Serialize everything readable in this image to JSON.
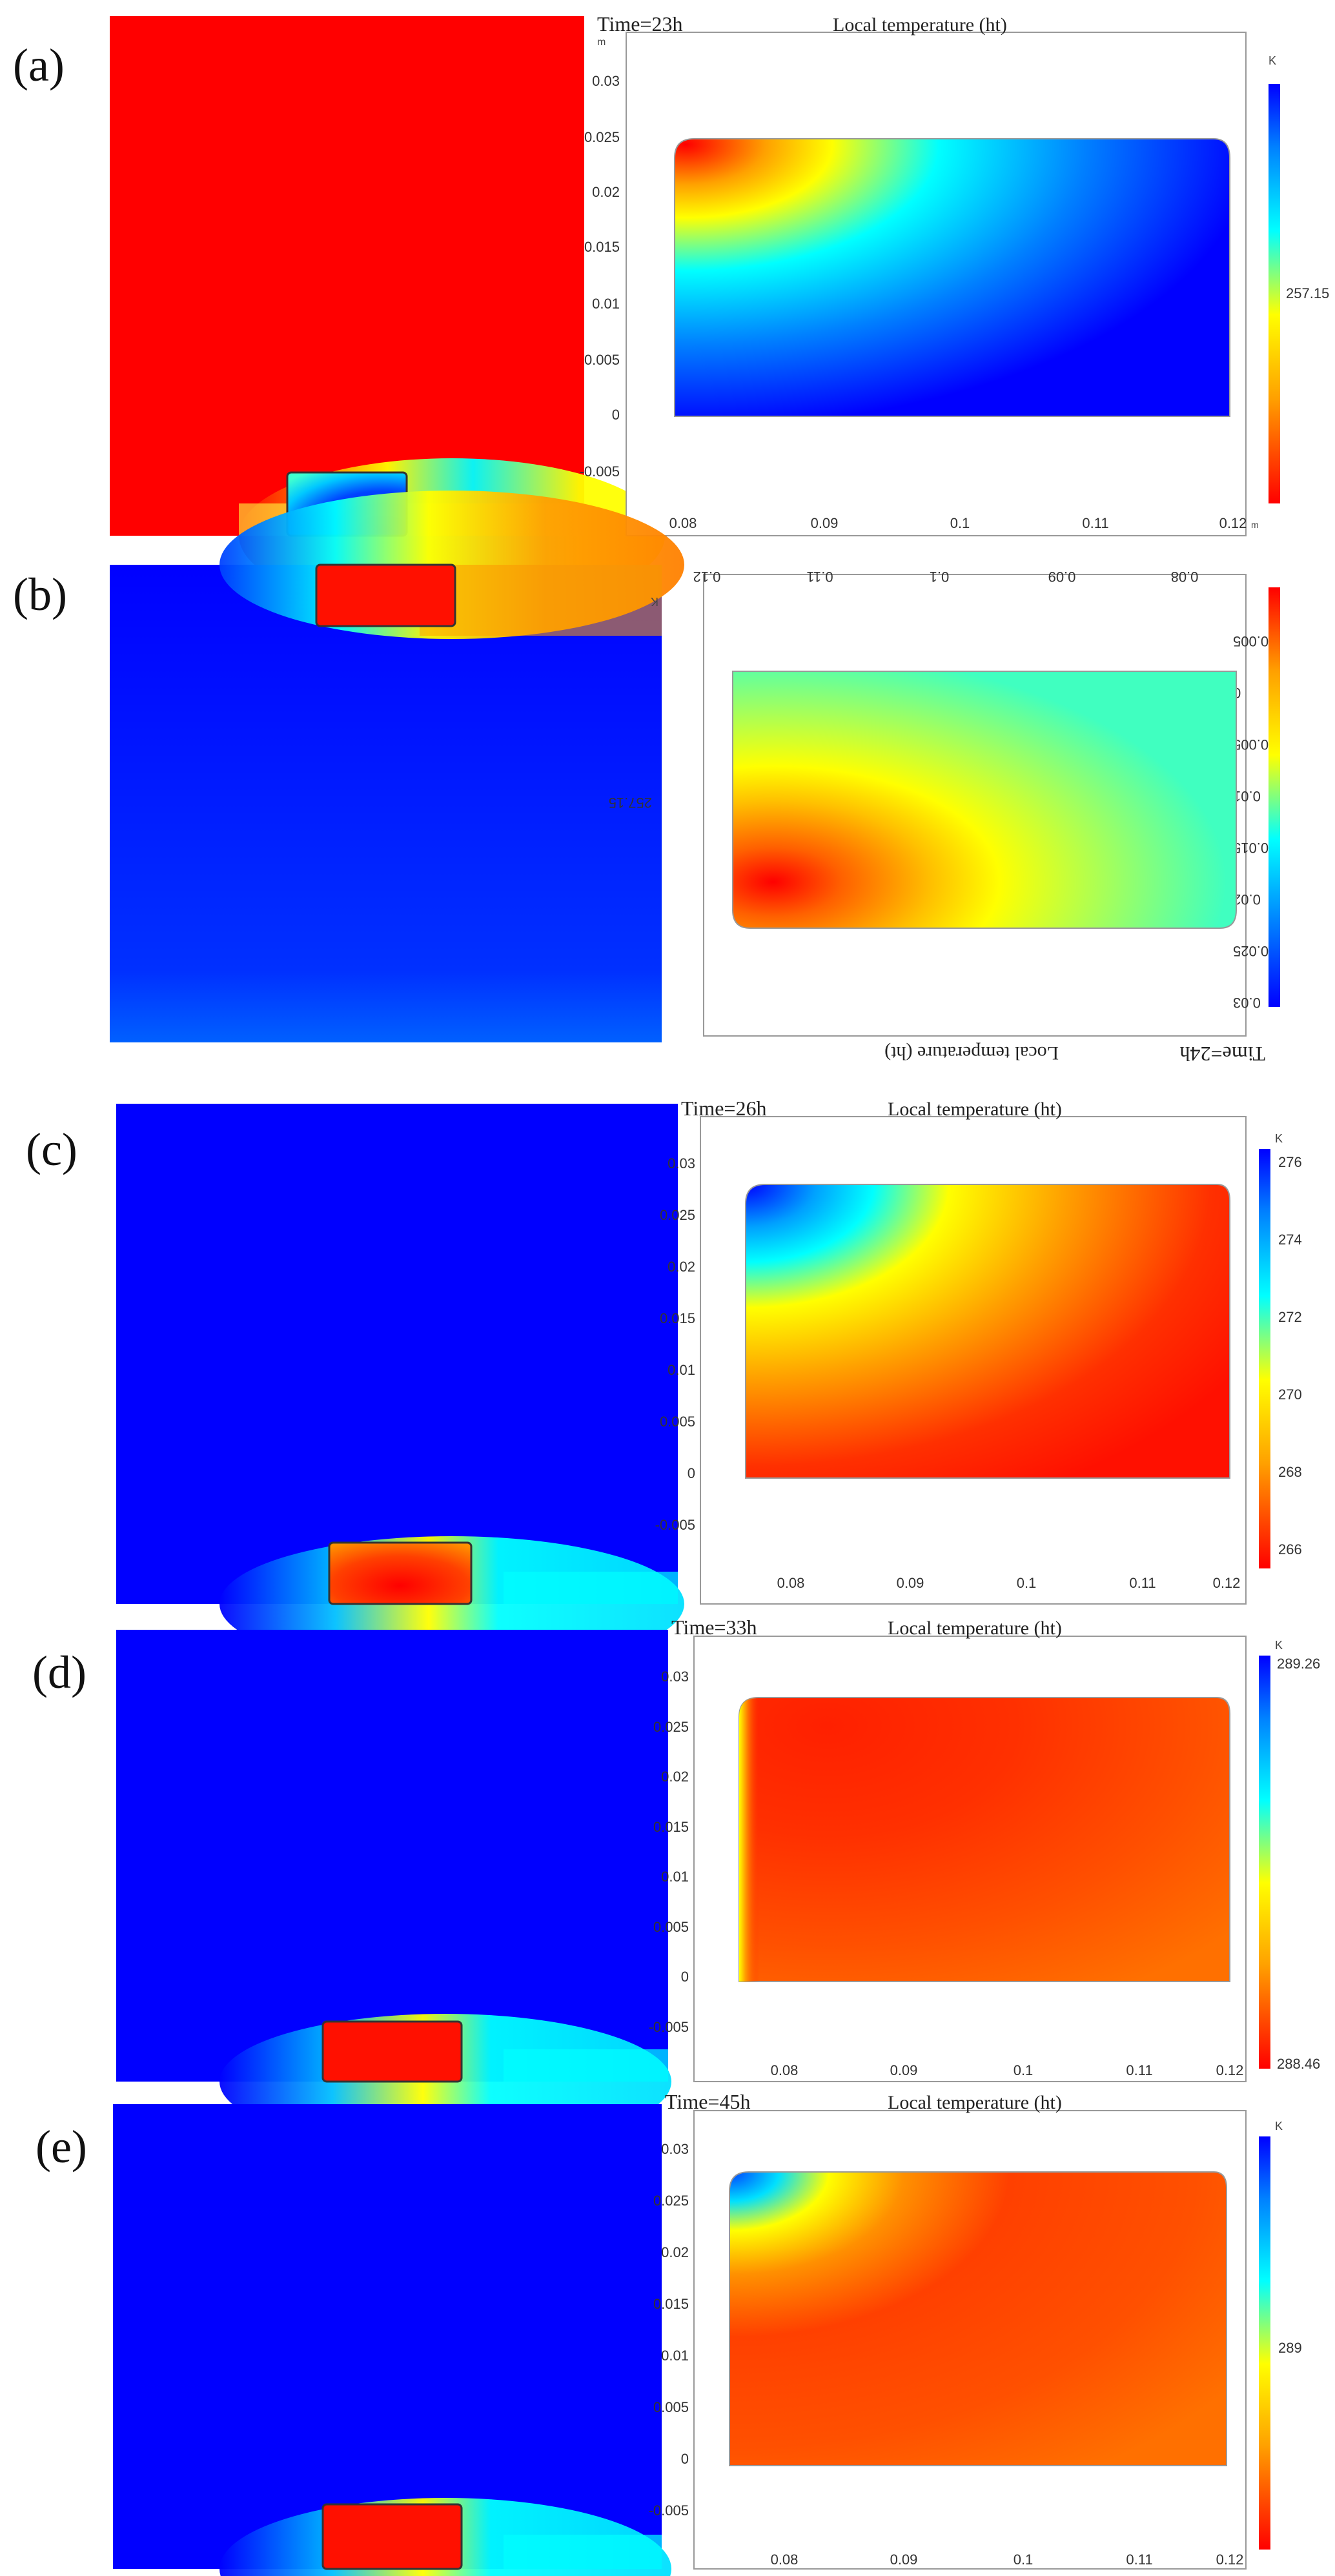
{
  "figure": {
    "colorbar_unit": "K",
    "x_unit": "m",
    "y_unit": "m",
    "x_ticks": [
      "0.08",
      "0.09",
      "0.1",
      "0.11",
      "0.12"
    ],
    "y_ticks": [
      "0.03",
      "0.025",
      "0.02",
      "0.015",
      "0.01",
      "0.005",
      "0",
      "-0.005"
    ],
    "panels": [
      {
        "label": "(a)",
        "time": "Time=23h",
        "plot_title": "Local temperature (ht)",
        "colorbar_ticks": [
          "257.15"
        ],
        "inverted": false
      },
      {
        "label": "(b)",
        "time": "Time=24h",
        "plot_title": "Local temperature (ht)",
        "colorbar_ticks": [
          "257.15"
        ],
        "inverted": true
      },
      {
        "label": "(c)",
        "time": "Time=26h",
        "plot_title": "Local temperature (ht)",
        "colorbar_ticks": [
          "276",
          "274",
          "272",
          "270",
          "268",
          "266"
        ],
        "inverted": false
      },
      {
        "label": "(d)",
        "time": "Time=33h",
        "plot_title": "Local temperature (ht)",
        "colorbar_ticks": [
          "289.26",
          "288.46"
        ],
        "inverted": false
      },
      {
        "label": "(e)",
        "time": "Time=45h",
        "plot_title": "Local temperature (ht)",
        "colorbar_ticks": [
          "289"
        ],
        "inverted": false
      }
    ]
  }
}
